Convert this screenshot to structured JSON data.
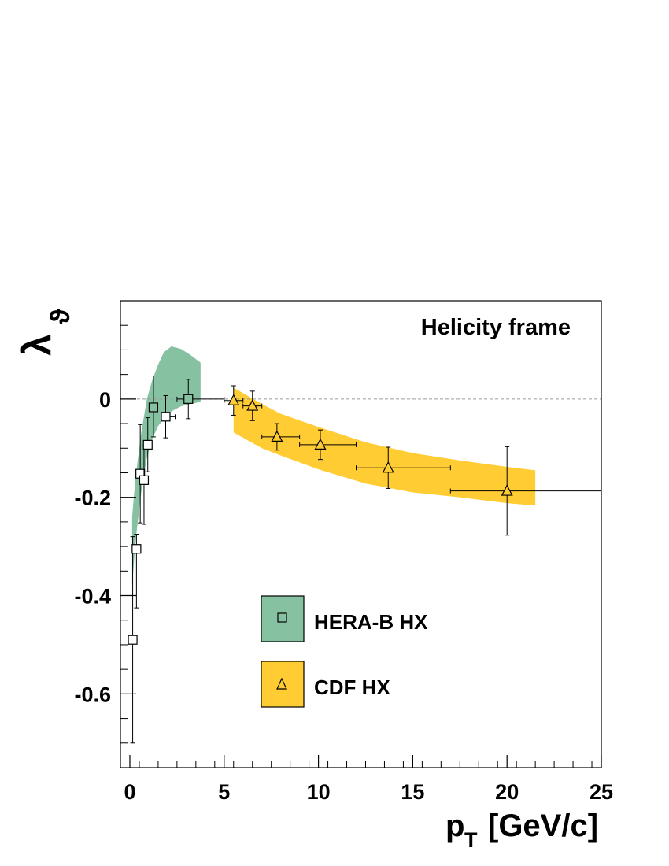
{
  "chart_data": {
    "type": "scatter",
    "annotation": "Helicity frame",
    "xlabel_main": "p",
    "xlabel_sub": "T",
    "xlabel_unit": "[GeV/c]",
    "ylabel_main": "λ",
    "ylabel_sub": "ϑ",
    "xlim": [
      -0.5,
      25
    ],
    "ylim": [
      -0.75,
      0.2
    ],
    "x_ticks": [
      0,
      5,
      10,
      15,
      20,
      25
    ],
    "x_tick_labels": [
      "0",
      "5",
      "10",
      "15",
      "20",
      "25"
    ],
    "y_ticks": [
      0,
      -0.2,
      -0.4,
      -0.6
    ],
    "y_tick_labels": [
      "0",
      "-0.2",
      "-0.4",
      "-0.6"
    ],
    "reference_line": 0,
    "legend_position": "lower-center",
    "bands": [
      {
        "name": "HERA-B HX",
        "color": "#86c2a2",
        "upper": [
          [
            0.12,
            -0.24
          ],
          [
            0.3,
            -0.16
          ],
          [
            0.6,
            -0.07
          ],
          [
            0.9,
            0.0
          ],
          [
            1.2,
            0.04
          ],
          [
            1.5,
            0.07
          ],
          [
            1.8,
            0.095
          ],
          [
            2.2,
            0.107
          ],
          [
            2.7,
            0.102
          ],
          [
            3.2,
            0.09
          ],
          [
            3.75,
            0.074
          ]
        ],
        "lower": [
          [
            0.12,
            -0.38
          ],
          [
            0.3,
            -0.29
          ],
          [
            0.6,
            -0.19
          ],
          [
            0.9,
            -0.12
          ],
          [
            1.2,
            -0.08
          ],
          [
            1.5,
            -0.055
          ],
          [
            1.8,
            -0.04
          ],
          [
            2.2,
            -0.025
          ],
          [
            2.7,
            -0.015
          ],
          [
            3.2,
            -0.01
          ],
          [
            3.75,
            -0.006
          ]
        ]
      },
      {
        "name": "CDF HX",
        "color": "#ffcc33",
        "upper": [
          [
            5.5,
            0.023
          ],
          [
            7.0,
            -0.01
          ],
          [
            8.0,
            -0.03
          ],
          [
            10.0,
            -0.057
          ],
          [
            12.5,
            -0.088
          ],
          [
            15.0,
            -0.11
          ],
          [
            17.5,
            -0.125
          ],
          [
            20.0,
            -0.138
          ],
          [
            21.5,
            -0.145
          ]
        ],
        "lower": [
          [
            5.5,
            -0.068
          ],
          [
            7.0,
            -0.1
          ],
          [
            8.0,
            -0.115
          ],
          [
            10.0,
            -0.143
          ],
          [
            12.5,
            -0.172
          ],
          [
            15.0,
            -0.19
          ],
          [
            17.5,
            -0.2
          ],
          [
            20.0,
            -0.212
          ],
          [
            21.5,
            -0.217
          ]
        ]
      }
    ],
    "series": [
      {
        "name": "HERA-B HX",
        "marker": "square",
        "fill": "#86c2a2",
        "points": [
          {
            "x": 0.15,
            "y": -0.49,
            "yerr_up": 0.21,
            "yerr_dn": 0.21,
            "xerr_lo": 0,
            "xerr_hi": 0,
            "filled": false
          },
          {
            "x": 0.35,
            "y": -0.305,
            "yerr_up": 0.03,
            "yerr_dn": 0.12,
            "xerr_lo": 0,
            "xerr_hi": 0,
            "filled": false
          },
          {
            "x": 0.55,
            "y": -0.152,
            "yerr_up": 0.1,
            "yerr_dn": 0.1,
            "xerr_lo": 0,
            "xerr_hi": 0,
            "filled": false
          },
          {
            "x": 0.75,
            "y": -0.165,
            "yerr_up": 0.07,
            "yerr_dn": 0.09,
            "xerr_lo": 0,
            "xerr_hi": 0,
            "filled": false
          },
          {
            "x": 0.95,
            "y": -0.093,
            "yerr_up": 0.055,
            "yerr_dn": 0.055,
            "xerr_lo": 0,
            "xerr_hi": 0,
            "filled": false
          },
          {
            "x": 1.25,
            "y": -0.017,
            "yerr_up": 0.064,
            "yerr_dn": 0.06,
            "xerr_lo": 0.15,
            "xerr_hi": 0.15,
            "filled": true
          },
          {
            "x": 1.9,
            "y": -0.036,
            "yerr_up": 0.043,
            "yerr_dn": 0.043,
            "xerr_lo": 0.25,
            "xerr_hi": 0.5,
            "filled": false
          },
          {
            "x": 3.1,
            "y": 0.0,
            "yerr_up": 0.04,
            "yerr_dn": 0.04,
            "xerr_lo": 0.6,
            "xerr_hi": 1.9,
            "filled": true
          }
        ]
      },
      {
        "name": "CDF HX",
        "marker": "triangle",
        "fill": "#ffcc33",
        "points": [
          {
            "x": 5.5,
            "y": -0.003,
            "yerr_up": 0.03,
            "yerr_dn": 0.03,
            "xerr_lo": 0.5,
            "xerr_hi": 0.5
          },
          {
            "x": 6.5,
            "y": -0.014,
            "yerr_up": 0.03,
            "yerr_dn": 0.03,
            "xerr_lo": 0.5,
            "xerr_hi": 0.5
          },
          {
            "x": 7.8,
            "y": -0.077,
            "yerr_up": 0.027,
            "yerr_dn": 0.027,
            "xerr_lo": 0.8,
            "xerr_hi": 1.2
          },
          {
            "x": 10.1,
            "y": -0.093,
            "yerr_up": 0.03,
            "yerr_dn": 0.03,
            "xerr_lo": 1.1,
            "xerr_hi": 1.9
          },
          {
            "x": 13.7,
            "y": -0.14,
            "yerr_up": 0.042,
            "yerr_dn": 0.042,
            "xerr_lo": 1.7,
            "xerr_hi": 3.3
          },
          {
            "x": 20.0,
            "y": -0.187,
            "yerr_up": 0.09,
            "yerr_dn": 0.09,
            "xerr_lo": 3.0,
            "xerr_hi": 5.0
          }
        ]
      }
    ]
  }
}
